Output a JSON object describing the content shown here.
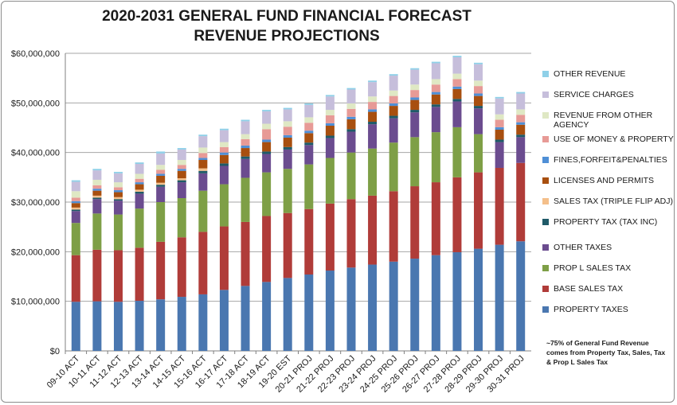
{
  "chart_data": {
    "type": "bar",
    "stacked": true,
    "title_lines": [
      "2020-2031 GENERAL FUND FINANCIAL FORECAST",
      "REVENUE PROJECTIONS"
    ],
    "categories": [
      "09-10 ACT",
      "10-11 ACT",
      "11-12 ACT",
      "12-13 ACT",
      "13-14 ACT",
      "14-15 ACT",
      "15-16 ACT",
      "16-17 ACT",
      "17-18 ACT",
      "18-19 ACT",
      "19-20 EST",
      "20-21 PROJ",
      "21-22 PROJ",
      "22-23 PROJ",
      "23-24 PROJ",
      "24-25 PROJ",
      "25-26 PROJ",
      "26-27 PROJ",
      "27-28 PROJ",
      "28-29 PROJ",
      "29-30 PROJ",
      "30-31 PROJ"
    ],
    "ylim": [
      0,
      60000000
    ],
    "yticks": [
      0,
      10000000,
      20000000,
      30000000,
      40000000,
      50000000,
      60000000
    ],
    "ytick_labels": [
      "$0",
      "$10,000,000",
      "$20,000,000",
      "$30,000,000",
      "$40,000,000",
      "$50,000,000",
      "$60,000,000"
    ],
    "grid": true,
    "legend_position": "right",
    "series": [
      {
        "name": "PROPERTY TAXES",
        "color": "#4a77b0",
        "values": [
          9900000,
          10000000,
          9900000,
          10100000,
          10400000,
          10900000,
          11400000,
          12300000,
          13100000,
          13900000,
          14700000,
          15400000,
          16200000,
          16800000,
          17400000,
          18000000,
          18600000,
          19300000,
          19900000,
          20600000,
          21400000,
          22100000
        ]
      },
      {
        "name": "BASE SALES TAX",
        "color": "#b03c39",
        "values": [
          9400000,
          10400000,
          10400000,
          10700000,
          11600000,
          12000000,
          12600000,
          12800000,
          12900000,
          13300000,
          13100000,
          13200000,
          13500000,
          13800000,
          13900000,
          14200000,
          14600000,
          14700000,
          15100000,
          15400000,
          15500000,
          15800000
        ]
      },
      {
        "name": "PROP L SALES TAX",
        "color": "#7e9f46",
        "values": [
          6500000,
          7300000,
          7200000,
          7900000,
          8000000,
          7900000,
          8300000,
          8500000,
          8900000,
          8800000,
          8900000,
          9000000,
          9200000,
          9400000,
          9500000,
          9800000,
          9900000,
          10100000,
          10100000,
          7700000,
          0,
          0
        ]
      },
      {
        "name": "OTHER TAXES",
        "color": "#6b4c8f",
        "values": [
          2400000,
          2900000,
          2800000,
          3000000,
          3100000,
          3200000,
          3500000,
          3700000,
          3800000,
          3700000,
          3900000,
          3900000,
          4000000,
          4200000,
          4900000,
          4900000,
          5000000,
          5100000,
          5200000,
          5200000,
          5200000,
          5200000
        ]
      },
      {
        "name": "PROPERTY TAX (TAX INC)",
        "color": "#1f5a68",
        "values": [
          300000,
          300000,
          300000,
          400000,
          400000,
          400000,
          500000,
          500000,
          500000,
          500000,
          500000,
          500000,
          500000,
          500000,
          500000,
          500000,
          500000,
          500000,
          500000,
          500000,
          500000,
          500000
        ]
      },
      {
        "name": "SALES TAX (TRIPLE FLIP ADJ)",
        "color": "#f4bf8a",
        "values": [
          400000,
          400000,
          400000,
          400000,
          400000,
          400000,
          500000,
          0,
          0,
          0,
          0,
          0,
          0,
          0,
          0,
          0,
          0,
          0,
          0,
          0,
          0,
          0
        ]
      },
      {
        "name": "LICENSES AND PERMITS",
        "color": "#a84f0f",
        "values": [
          900000,
          1000000,
          1000000,
          1100000,
          1400000,
          1500000,
          1700000,
          1700000,
          1700000,
          1900000,
          1900000,
          1900000,
          2000000,
          2000000,
          2000000,
          2000000,
          2000000,
          2000000,
          2000000,
          2000000,
          2000000,
          2000000
        ]
      },
      {
        "name": "FINES,FORFEIT&PENALTIES",
        "color": "#4f8fd6",
        "values": [
          400000,
          400000,
          400000,
          400000,
          400000,
          400000,
          400000,
          500000,
          500000,
          500000,
          500000,
          500000,
          500000,
          500000,
          500000,
          500000,
          500000,
          500000,
          500000,
          500000,
          500000,
          500000
        ]
      },
      {
        "name": "USE OF MONEY & PROPERTY",
        "color": "#e79a96",
        "values": [
          700000,
          700000,
          600000,
          700000,
          800000,
          800000,
          1000000,
          1100000,
          1300000,
          2100000,
          1700000,
          1600000,
          1600000,
          1600000,
          1500000,
          1500000,
          1500000,
          1500000,
          1500000,
          1500000,
          1500000,
          1500000
        ]
      },
      {
        "name": "REVENUE FROM OTHER AGENCY",
        "color": "#dfe8c4",
        "values": [
          1300000,
          1100000,
          1000000,
          1000000,
          1000000,
          1000000,
          1100000,
          1000000,
          1000000,
          1100000,
          1100000,
          1100000,
          1100000,
          1100000,
          1100000,
          1100000,
          1100000,
          1100000,
          1100000,
          1100000,
          1100000,
          1100000
        ]
      },
      {
        "name": "SERVICE CHARGES",
        "color": "#c6bedb",
        "values": [
          1900000,
          1900000,
          1800000,
          2000000,
          2300000,
          2100000,
          2300000,
          2400000,
          2600000,
          2500000,
          2400000,
          2500000,
          2700000,
          2800000,
          2900000,
          3000000,
          3000000,
          3200000,
          3300000,
          3300000,
          3200000,
          3200000
        ]
      },
      {
        "name": "OTHER REVENUE",
        "color": "#8fd0e8",
        "values": [
          300000,
          300000,
          300000,
          300000,
          400000,
          300000,
          300000,
          300000,
          300000,
          300000,
          300000,
          300000,
          300000,
          300000,
          300000,
          300000,
          300000,
          300000,
          300000,
          300000,
          300000,
          300000
        ]
      }
    ],
    "note": "~75% of General Fund Revenue comes from Property Tax, Sales, Tax & Prop L Sales Tax"
  }
}
